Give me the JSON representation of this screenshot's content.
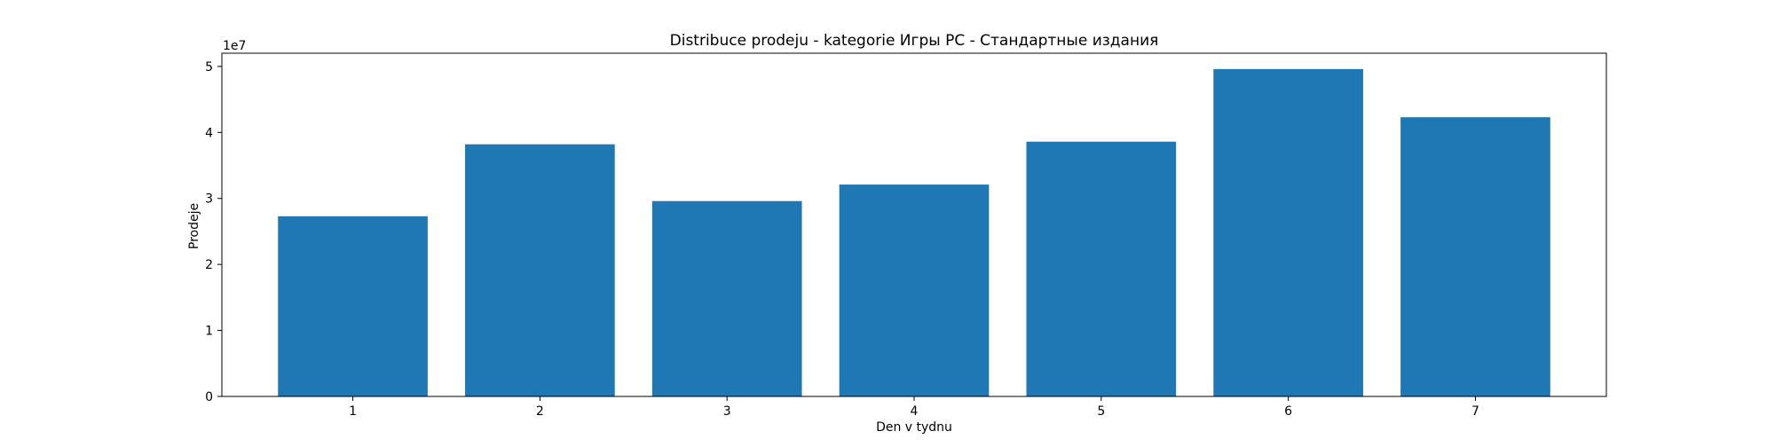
{
  "chart_data": {
    "type": "bar",
    "title": "Distribuce prodeju  - kategorie Игры PC - Стандартные издания",
    "xlabel": "Den v tydnu",
    "ylabel": "Prodeje",
    "y_offset_label": "1e7",
    "categories": [
      "1",
      "2",
      "3",
      "4",
      "5",
      "6",
      "7"
    ],
    "values": [
      2.73,
      3.82,
      2.96,
      3.21,
      3.86,
      4.96,
      4.23
    ],
    "value_scale": 10000000,
    "ylim": [
      0,
      5.2
    ],
    "yticks": [
      0,
      1,
      2,
      3,
      4,
      5
    ],
    "ytick_labels": [
      "0",
      "1",
      "2",
      "3",
      "4",
      "5"
    ],
    "bar_color": "#1f77b4",
    "grid": false,
    "legend": "none"
  }
}
